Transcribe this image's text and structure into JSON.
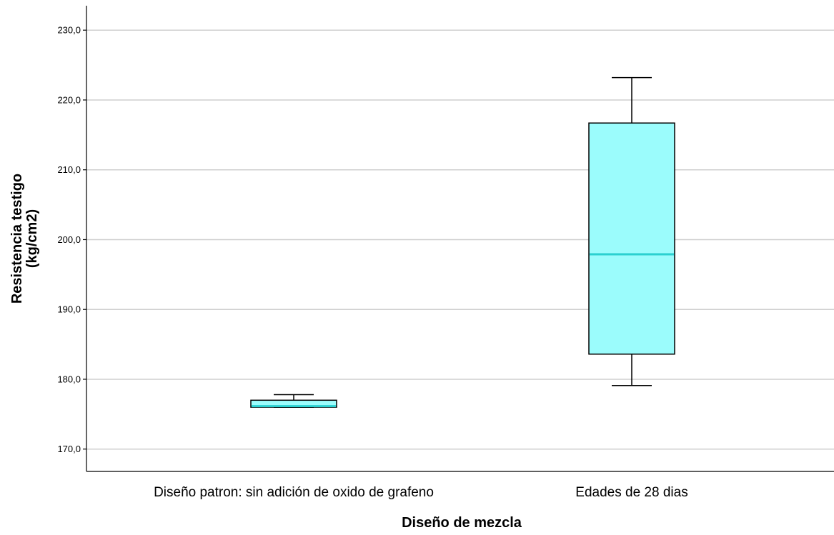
{
  "chart_data": {
    "type": "boxplot",
    "xlabel": "Diseño de mezcla",
    "ylabel": [
      "Resistencia testigo",
      "(kg/cm2)"
    ],
    "ylim": [
      166.8,
      233.5
    ],
    "yticks": [
      170,
      180,
      190,
      200,
      210,
      220,
      230
    ],
    "ytick_labels": [
      "170,0",
      "180,0",
      "190,0",
      "200,0",
      "210,0",
      "220,0",
      "230,0"
    ],
    "grid": true,
    "box_color": "#9bfcfc",
    "median_color": "#2bd0d0",
    "categories": [
      "Diseño patron: sin adición de oxido de grafeno",
      "Edades de 28 dias"
    ],
    "boxes": [
      {
        "min": 176.0,
        "q1": 176.0,
        "median": 176.0,
        "q3": 177.0,
        "max": 177.8
      },
      {
        "min": 179.1,
        "q1": 183.6,
        "median": 197.9,
        "q3": 216.7,
        "max": 223.2
      }
    ]
  }
}
